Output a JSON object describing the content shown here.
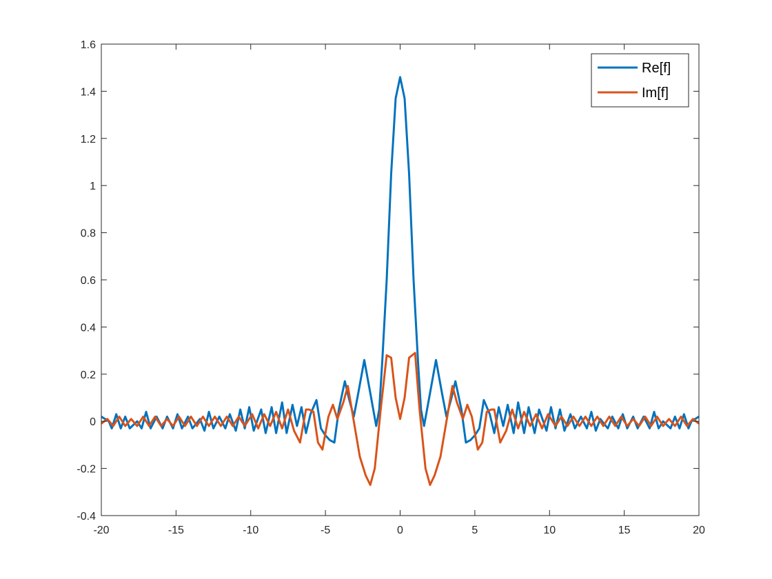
{
  "chart_data": {
    "type": "line",
    "title": "",
    "xlabel": "",
    "ylabel": "",
    "xlim": [
      -20,
      20
    ],
    "ylim": [
      -0.4,
      1.6
    ],
    "xticks": [
      -20,
      -15,
      -10,
      -5,
      0,
      5,
      10,
      15,
      20
    ],
    "yticks": [
      -0.4,
      -0.2,
      0,
      0.2,
      0.4,
      0.6,
      0.8,
      1,
      1.2,
      1.4,
      1.6
    ],
    "xtick_labels": [
      "-20",
      "-15",
      "-10",
      "-5",
      "0",
      "5",
      "10",
      "15",
      "20"
    ],
    "ytick_labels": [
      "-0.4",
      "-0.2",
      "0",
      "0.2",
      "0.4",
      "0.6",
      "0.8",
      "1",
      "1.2",
      "1.4",
      "1.6"
    ],
    "grid": false,
    "legend_position": "top-right",
    "series": [
      {
        "name": "Re[f]",
        "color": "#0072BD",
        "points": [
          [
            -20,
            0.02
          ],
          [
            -19.5,
            0.0
          ],
          [
            -19.3,
            -0.03
          ],
          [
            -19.0,
            0.03
          ],
          [
            -18.7,
            -0.03
          ],
          [
            -18.4,
            0.02
          ],
          [
            -18.1,
            -0.03
          ],
          [
            -17.6,
            0.0
          ],
          [
            -17.3,
            -0.03
          ],
          [
            -17.0,
            0.04
          ],
          [
            -16.7,
            -0.03
          ],
          [
            -16.3,
            0.02
          ],
          [
            -15.9,
            -0.03
          ],
          [
            -15.6,
            0.02
          ],
          [
            -15.2,
            -0.03
          ],
          [
            -14.9,
            0.03
          ],
          [
            -14.6,
            -0.03
          ],
          [
            -14.2,
            0.02
          ],
          [
            -13.9,
            -0.03
          ],
          [
            -13.4,
            0.01
          ],
          [
            -13.1,
            -0.04
          ],
          [
            -12.8,
            0.04
          ],
          [
            -12.5,
            -0.03
          ],
          [
            -12.1,
            0.02
          ],
          [
            -11.7,
            -0.03
          ],
          [
            -11.4,
            0.03
          ],
          [
            -11.0,
            -0.04
          ],
          [
            -10.7,
            0.05
          ],
          [
            -10.4,
            -0.03
          ],
          [
            -10.1,
            0.06
          ],
          [
            -9.8,
            -0.04
          ],
          [
            -9.3,
            0.05
          ],
          [
            -9.0,
            -0.05
          ],
          [
            -8.6,
            0.06
          ],
          [
            -8.3,
            -0.05
          ],
          [
            -7.9,
            0.08
          ],
          [
            -7.6,
            -0.05
          ],
          [
            -7.2,
            0.07
          ],
          [
            -6.9,
            -0.02
          ],
          [
            -6.6,
            0.06
          ],
          [
            -6.3,
            -0.05
          ],
          [
            -6.0,
            0.03
          ],
          [
            -5.6,
            0.09
          ],
          [
            -5.3,
            -0.03
          ],
          [
            -5.0,
            -0.06
          ],
          [
            -4.7,
            -0.08
          ],
          [
            -4.4,
            -0.09
          ],
          [
            -4.1,
            0.05
          ],
          [
            -3.7,
            0.17
          ],
          [
            -3.4,
            0.09
          ],
          [
            -3.1,
            0.02
          ],
          [
            -2.8,
            0.12
          ],
          [
            -2.4,
            0.26
          ],
          [
            -2.0,
            0.12
          ],
          [
            -1.6,
            -0.02
          ],
          [
            -1.4,
            0.05
          ],
          [
            -1.2,
            0.25
          ],
          [
            -0.9,
            0.6
          ],
          [
            -0.6,
            1.05
          ],
          [
            -0.3,
            1.37
          ],
          [
            0,
            1.46
          ],
          [
            0.3,
            1.37
          ],
          [
            0.6,
            1.05
          ],
          [
            0.9,
            0.6
          ],
          [
            1.2,
            0.25
          ],
          [
            1.4,
            0.05
          ],
          [
            1.6,
            -0.02
          ],
          [
            2.0,
            0.12
          ],
          [
            2.4,
            0.26
          ],
          [
            2.8,
            0.12
          ],
          [
            3.1,
            0.02
          ],
          [
            3.4,
            0.09
          ],
          [
            3.7,
            0.17
          ],
          [
            4.1,
            0.05
          ],
          [
            4.4,
            -0.09
          ],
          [
            4.7,
            -0.08
          ],
          [
            5.0,
            -0.06
          ],
          [
            5.3,
            -0.03
          ],
          [
            5.6,
            0.09
          ],
          [
            6.0,
            0.03
          ],
          [
            6.3,
            -0.05
          ],
          [
            6.6,
            0.06
          ],
          [
            6.9,
            -0.02
          ],
          [
            7.2,
            0.07
          ],
          [
            7.6,
            -0.05
          ],
          [
            7.9,
            0.08
          ],
          [
            8.3,
            -0.05
          ],
          [
            8.6,
            0.06
          ],
          [
            9.0,
            -0.05
          ],
          [
            9.3,
            0.05
          ],
          [
            9.8,
            -0.04
          ],
          [
            10.1,
            0.06
          ],
          [
            10.4,
            -0.03
          ],
          [
            10.7,
            0.05
          ],
          [
            11.0,
            -0.04
          ],
          [
            11.4,
            0.03
          ],
          [
            11.7,
            -0.03
          ],
          [
            12.1,
            0.02
          ],
          [
            12.5,
            -0.03
          ],
          [
            12.8,
            0.04
          ],
          [
            13.1,
            -0.04
          ],
          [
            13.4,
            0.01
          ],
          [
            13.9,
            -0.03
          ],
          [
            14.2,
            0.02
          ],
          [
            14.6,
            -0.03
          ],
          [
            14.9,
            0.03
          ],
          [
            15.2,
            -0.03
          ],
          [
            15.6,
            0.02
          ],
          [
            15.9,
            -0.03
          ],
          [
            16.3,
            0.02
          ],
          [
            16.7,
            -0.03
          ],
          [
            17.0,
            0.04
          ],
          [
            17.3,
            -0.03
          ],
          [
            17.6,
            0.0
          ],
          [
            18.1,
            -0.03
          ],
          [
            18.4,
            0.02
          ],
          [
            18.7,
            -0.03
          ],
          [
            19.0,
            0.03
          ],
          [
            19.3,
            -0.03
          ],
          [
            19.5,
            0.0
          ],
          [
            20,
            0.02
          ]
        ]
      },
      {
        "name": "Im[f]",
        "color": "#D95319",
        "points": [
          [
            -20,
            -0.01
          ],
          [
            -19.6,
            0.01
          ],
          [
            -19.2,
            -0.02
          ],
          [
            -18.8,
            0.02
          ],
          [
            -18.4,
            -0.02
          ],
          [
            -18.0,
            0.01
          ],
          [
            -17.6,
            -0.02
          ],
          [
            -17.2,
            0.02
          ],
          [
            -16.8,
            -0.02
          ],
          [
            -16.4,
            0.02
          ],
          [
            -16.0,
            -0.02
          ],
          [
            -15.6,
            0.01
          ],
          [
            -15.2,
            -0.02
          ],
          [
            -14.8,
            0.02
          ],
          [
            -14.4,
            -0.02
          ],
          [
            -14.0,
            0.02
          ],
          [
            -13.6,
            -0.02
          ],
          [
            -13.2,
            0.02
          ],
          [
            -12.8,
            -0.02
          ],
          [
            -12.4,
            0.02
          ],
          [
            -12.0,
            -0.02
          ],
          [
            -11.6,
            0.02
          ],
          [
            -11.2,
            -0.02
          ],
          [
            -10.8,
            0.02
          ],
          [
            -10.4,
            -0.02
          ],
          [
            -9.9,
            0.03
          ],
          [
            -9.5,
            -0.03
          ],
          [
            -9.1,
            0.03
          ],
          [
            -8.7,
            -0.02
          ],
          [
            -8.3,
            0.04
          ],
          [
            -7.9,
            -0.03
          ],
          [
            -7.5,
            0.05
          ],
          [
            -7.1,
            -0.04
          ],
          [
            -6.7,
            -0.09
          ],
          [
            -6.3,
            0.05
          ],
          [
            -6.1,
            0.05
          ],
          [
            -5.8,
            0.04
          ],
          [
            -5.5,
            -0.09
          ],
          [
            -5.2,
            -0.12
          ],
          [
            -4.8,
            0.02
          ],
          [
            -4.5,
            0.07
          ],
          [
            -4.2,
            0.01
          ],
          [
            -3.8,
            0.08
          ],
          [
            -3.5,
            0.15
          ],
          [
            -3.1,
            0.0
          ],
          [
            -2.7,
            -0.15
          ],
          [
            -2.3,
            -0.23
          ],
          [
            -2.0,
            -0.27
          ],
          [
            -1.7,
            -0.2
          ],
          [
            -1.3,
            0.05
          ],
          [
            -0.9,
            0.28
          ],
          [
            -0.6,
            0.27
          ],
          [
            -0.3,
            0.1
          ],
          [
            0,
            0.01
          ],
          [
            0.3,
            0.1
          ],
          [
            0.6,
            0.27
          ],
          [
            1.0,
            0.29
          ],
          [
            1.3,
            0.05
          ],
          [
            1.7,
            -0.2
          ],
          [
            2.0,
            -0.27
          ],
          [
            2.3,
            -0.23
          ],
          [
            2.7,
            -0.15
          ],
          [
            3.1,
            0.0
          ],
          [
            3.5,
            0.15
          ],
          [
            3.8,
            0.08
          ],
          [
            4.2,
            0.01
          ],
          [
            4.5,
            0.07
          ],
          [
            4.8,
            0.02
          ],
          [
            5.2,
            -0.12
          ],
          [
            5.5,
            -0.09
          ],
          [
            5.8,
            0.04
          ],
          [
            6.1,
            0.05
          ],
          [
            6.3,
            0.05
          ],
          [
            6.7,
            -0.09
          ],
          [
            7.1,
            -0.04
          ],
          [
            7.5,
            0.05
          ],
          [
            7.9,
            -0.03
          ],
          [
            8.3,
            0.04
          ],
          [
            8.7,
            -0.02
          ],
          [
            9.1,
            0.03
          ],
          [
            9.5,
            -0.03
          ],
          [
            9.9,
            0.03
          ],
          [
            10.4,
            -0.02
          ],
          [
            10.8,
            0.02
          ],
          [
            11.2,
            -0.02
          ],
          [
            11.6,
            0.02
          ],
          [
            12.0,
            -0.02
          ],
          [
            12.4,
            0.02
          ],
          [
            12.8,
            -0.02
          ],
          [
            13.2,
            0.02
          ],
          [
            13.6,
            -0.02
          ],
          [
            14.0,
            0.02
          ],
          [
            14.4,
            -0.02
          ],
          [
            14.8,
            0.02
          ],
          [
            15.2,
            -0.02
          ],
          [
            15.6,
            0.01
          ],
          [
            16.0,
            -0.02
          ],
          [
            16.4,
            0.02
          ],
          [
            16.8,
            -0.02
          ],
          [
            17.2,
            0.02
          ],
          [
            17.6,
            -0.02
          ],
          [
            18.0,
            0.01
          ],
          [
            18.4,
            -0.02
          ],
          [
            18.8,
            0.02
          ],
          [
            19.2,
            -0.02
          ],
          [
            19.6,
            0.01
          ],
          [
            20,
            -0.01
          ]
        ]
      }
    ]
  }
}
